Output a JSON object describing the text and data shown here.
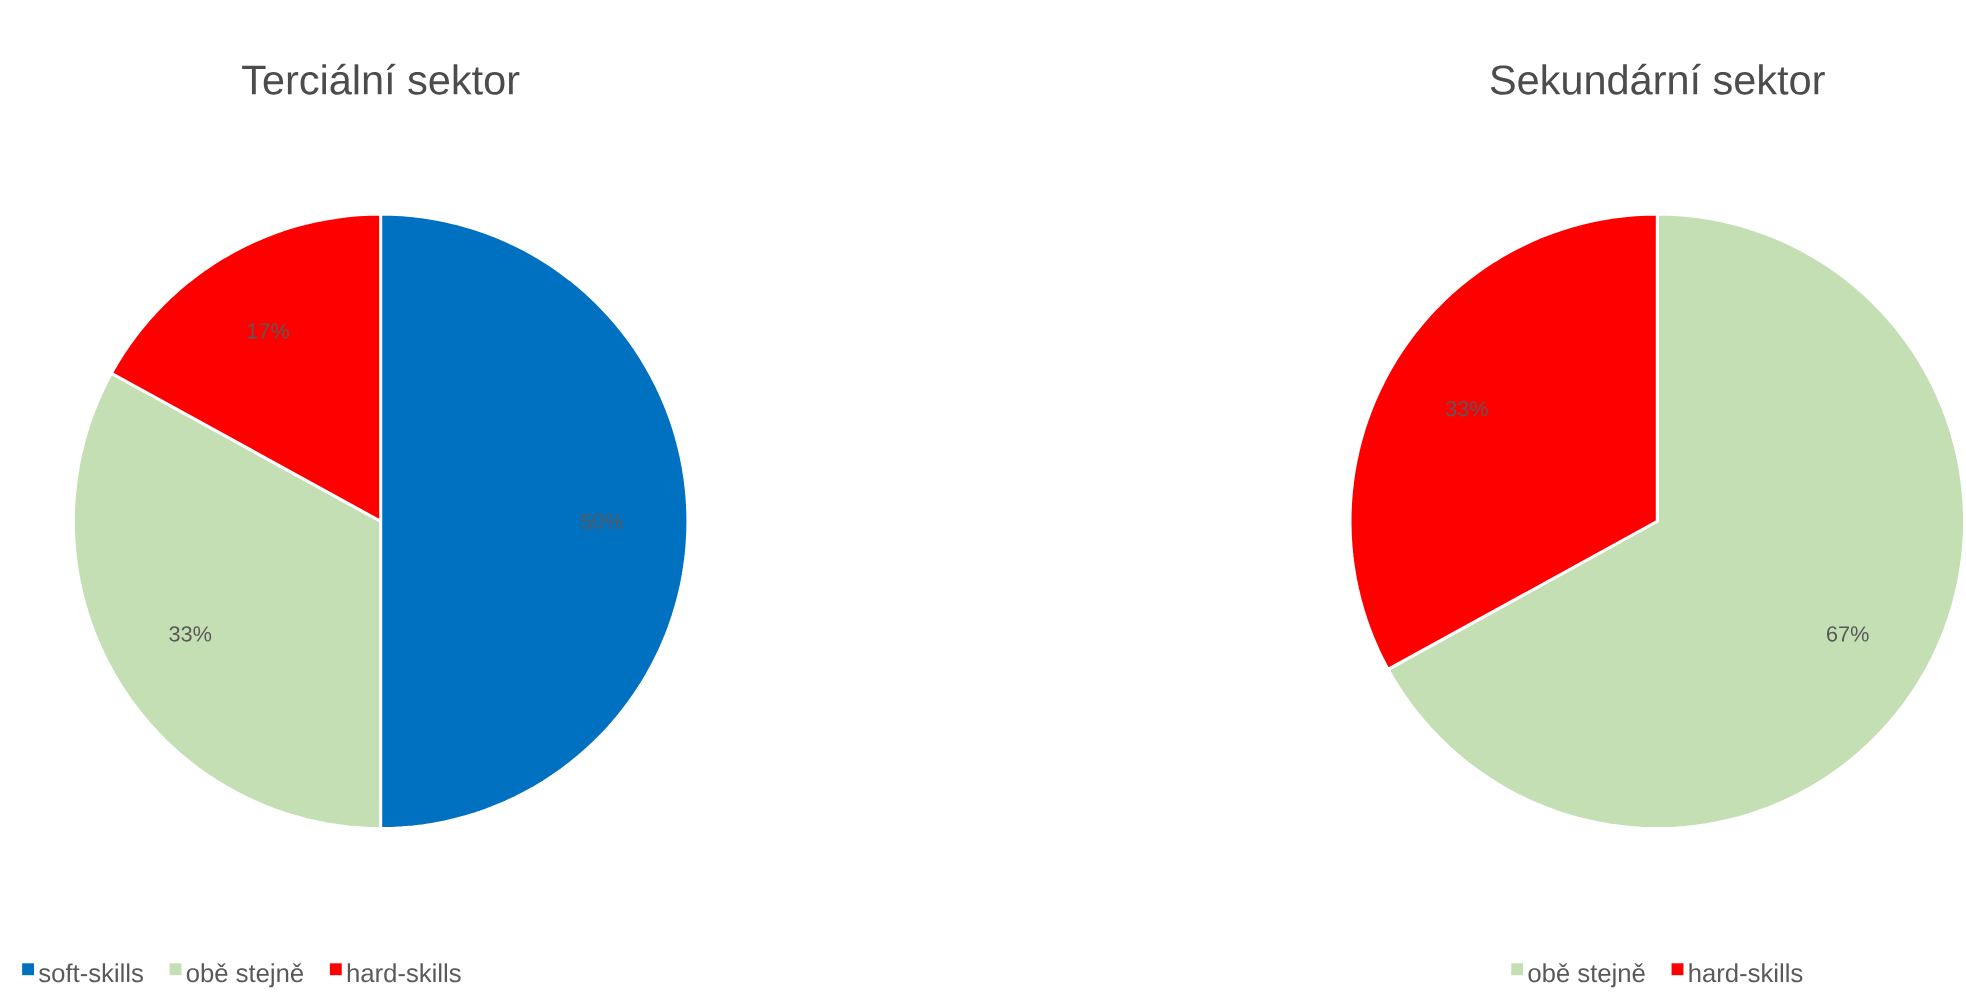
{
  "chart_data": [
    {
      "type": "pie",
      "title": "Terciální sektor",
      "categories": [
        "soft-skills",
        "obě stejně",
        "hard-skills"
      ],
      "values": [
        50,
        33,
        17
      ],
      "value_labels": [
        "50%",
        "33%",
        "17%"
      ],
      "colors": [
        "#0070c0",
        "#c5dfb4",
        "#ff0000"
      ],
      "legend": "bottom"
    },
    {
      "type": "pie",
      "title": "Sekundární sektor",
      "categories": [
        "obě stejně",
        "hard-skills"
      ],
      "values": [
        67,
        33
      ],
      "value_labels": [
        "67%",
        "33%"
      ],
      "colors": [
        "#c5dfb4",
        "#ff0000"
      ],
      "legend": "bottom"
    }
  ]
}
